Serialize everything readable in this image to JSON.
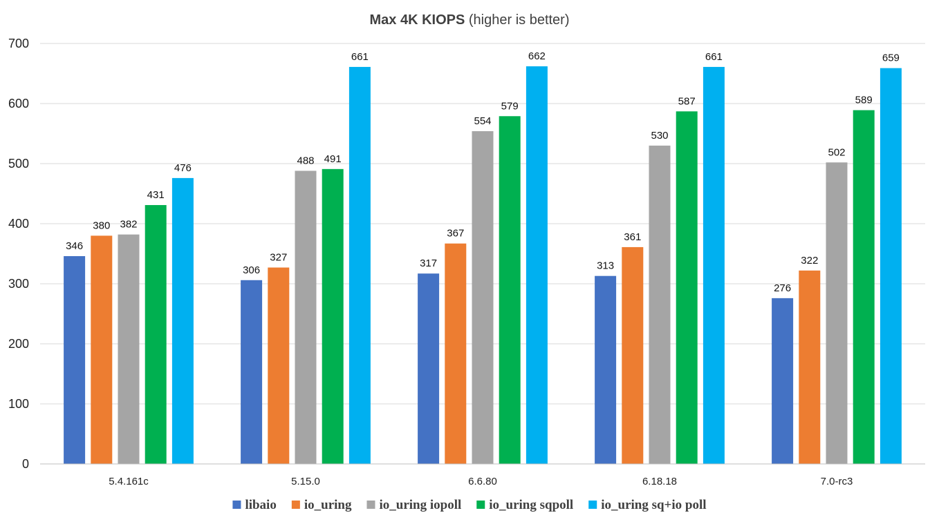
{
  "chart_data": {
    "type": "bar",
    "title": {
      "bold": "Max 4K KIOPS",
      "normal": " (higher is better)"
    },
    "xlabel": "",
    "ylabel": "",
    "ylim": [
      0,
      700
    ],
    "yticks": [
      0,
      100,
      200,
      300,
      400,
      500,
      600,
      700
    ],
    "grid": true,
    "legend_position": "bottom",
    "categories": [
      "5.4.161c",
      "5.15.0",
      "6.6.80",
      "6.18.18",
      "7.0-rc3"
    ],
    "series": [
      {
        "name": "libaio",
        "color": "#4472c4",
        "values": [
          346,
          306,
          317,
          313,
          276
        ]
      },
      {
        "name": "io_uring",
        "color": "#ed7d31",
        "values": [
          380,
          327,
          367,
          361,
          322
        ]
      },
      {
        "name": "io_uring iopoll",
        "color": "#a5a5a5",
        "values": [
          382,
          488,
          554,
          530,
          502
        ]
      },
      {
        "name": "io_uring sqpoll",
        "color": "#00b050",
        "values": [
          431,
          491,
          579,
          587,
          589
        ]
      },
      {
        "name": "io_uring sq+io poll",
        "color": "#00b0f0",
        "values": [
          476,
          661,
          662,
          661,
          659
        ]
      }
    ],
    "data_labels": true
  }
}
